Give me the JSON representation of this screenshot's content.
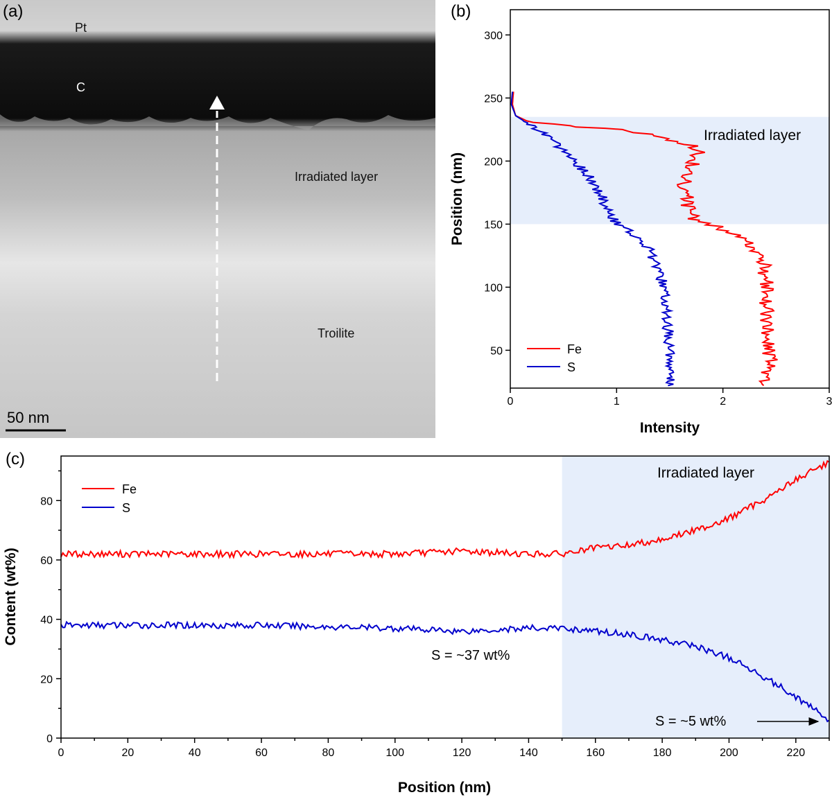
{
  "panels": {
    "a": {
      "label": "(a)",
      "annotations": {
        "pt": "Pt",
        "c": "C",
        "irradiated": "Irradiated layer",
        "troilite": "Troilite"
      },
      "scale_bar": "50 nm"
    },
    "b": {
      "label": "(b)"
    },
    "c": {
      "label": "(c)"
    }
  },
  "colors": {
    "fe": "#ff0000",
    "s": "#0000cc",
    "band": "#e6eefb"
  },
  "chart_data": [
    {
      "id": "b",
      "type": "line",
      "orientation": "horizontal-profile",
      "xlabel": "Intensity",
      "ylabel": "Position (nm)",
      "xlim": [
        0,
        3
      ],
      "ylim": [
        20,
        320
      ],
      "xticks": [
        0,
        1,
        2,
        3
      ],
      "yticks": [
        50,
        100,
        150,
        200,
        250,
        300
      ],
      "band": {
        "from": 150,
        "to": 235,
        "label": "Irradiated layer"
      },
      "legend": [
        "Fe",
        "S"
      ],
      "series": [
        {
          "name": "Fe",
          "points": [
            [
              2.35,
              22
            ],
            [
              2.42,
              30
            ],
            [
              2.45,
              40
            ],
            [
              2.43,
              50
            ],
            [
              2.42,
              60
            ],
            [
              2.41,
              70
            ],
            [
              2.41,
              80
            ],
            [
              2.4,
              90
            ],
            [
              2.41,
              100
            ],
            [
              2.4,
              110
            ],
            [
              2.38,
              120
            ],
            [
              2.3,
              130
            ],
            [
              2.15,
              140
            ],
            [
              1.95,
              148
            ],
            [
              1.75,
              152
            ],
            [
              1.68,
              160
            ],
            [
              1.66,
              170
            ],
            [
              1.62,
              180
            ],
            [
              1.7,
              190
            ],
            [
              1.72,
              200
            ],
            [
              1.78,
              208
            ],
            [
              1.7,
              212
            ],
            [
              1.4,
              220
            ],
            [
              1.0,
              225
            ],
            [
              0.5,
              228
            ],
            [
              0.15,
              232
            ],
            [
              0.05,
              236
            ],
            [
              0.02,
              245
            ],
            [
              0.03,
              255
            ]
          ]
        },
        {
          "name": "S",
          "points": [
            [
              1.5,
              22
            ],
            [
              1.5,
              30
            ],
            [
              1.48,
              40
            ],
            [
              1.5,
              50
            ],
            [
              1.49,
              60
            ],
            [
              1.48,
              70
            ],
            [
              1.47,
              80
            ],
            [
              1.45,
              90
            ],
            [
              1.44,
              100
            ],
            [
              1.41,
              110
            ],
            [
              1.36,
              120
            ],
            [
              1.3,
              130
            ],
            [
              1.2,
              140
            ],
            [
              1.1,
              145
            ],
            [
              1.0,
              150
            ],
            [
              0.93,
              160
            ],
            [
              0.87,
              170
            ],
            [
              0.8,
              180
            ],
            [
              0.72,
              190
            ],
            [
              0.6,
              200
            ],
            [
              0.48,
              210
            ],
            [
              0.35,
              220
            ],
            [
              0.2,
              228
            ],
            [
              0.05,
              236
            ],
            [
              0.01,
              245
            ],
            [
              0.02,
              255
            ]
          ]
        }
      ]
    },
    {
      "id": "c",
      "type": "line",
      "xlabel": "Position (nm)",
      "ylabel": "Content (wt%)",
      "xlim": [
        0,
        230
      ],
      "ylim": [
        0,
        95
      ],
      "xticks": [
        0,
        20,
        40,
        60,
        80,
        100,
        120,
        140,
        160,
        180,
        200,
        220
      ],
      "yticks": [
        0,
        20,
        40,
        60,
        80
      ],
      "band": {
        "from": 150,
        "to": 230,
        "label": "Irradiated layer"
      },
      "legend": [
        "Fe",
        "S"
      ],
      "annotations": {
        "s37": "S = ~37 wt%",
        "s5": "S = ~5 wt%"
      },
      "series": [
        {
          "name": "Fe",
          "points": [
            [
              0,
              62
            ],
            [
              20,
              62
            ],
            [
              40,
              62
            ],
            [
              60,
              62
            ],
            [
              80,
              62
            ],
            [
              100,
              62
            ],
            [
              120,
              63
            ],
            [
              140,
              62
            ],
            [
              150,
              62
            ],
            [
              160,
              64
            ],
            [
              170,
              65
            ],
            [
              180,
              67
            ],
            [
              190,
              70
            ],
            [
              200,
              74
            ],
            [
              210,
              80
            ],
            [
              220,
              87
            ],
            [
              230,
              93
            ]
          ]
        },
        {
          "name": "S",
          "points": [
            [
              0,
              38
            ],
            [
              20,
              38
            ],
            [
              40,
              38
            ],
            [
              60,
              38
            ],
            [
              80,
              37.5
            ],
            [
              100,
              37
            ],
            [
              120,
              36
            ],
            [
              140,
              37
            ],
            [
              150,
              37
            ],
            [
              160,
              36
            ],
            [
              170,
              35
            ],
            [
              180,
              33
            ],
            [
              190,
              31
            ],
            [
              200,
              27
            ],
            [
              210,
              21
            ],
            [
              220,
              14
            ],
            [
              230,
              6
            ]
          ]
        }
      ]
    }
  ]
}
